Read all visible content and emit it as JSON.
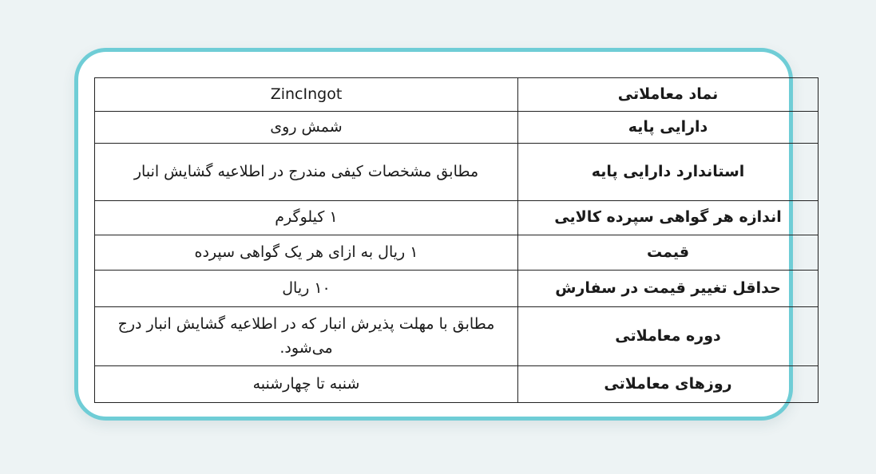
{
  "page": {
    "background_color": "#edf3f4",
    "direction": "rtl",
    "language": "fa"
  },
  "card": {
    "background_color": "#ffffff",
    "border_color": "#6fcdd6"
  },
  "table": {
    "border_color": "#222222",
    "text_color": "#1a1a1a",
    "label_column_side": "right",
    "rows": [
      {
        "label": "نماد معاملاتی",
        "value": "ZincIngot"
      },
      {
        "label": "دارایی پایه",
        "value": "شمش روی"
      },
      {
        "label": "استاندارد دارایی پایه",
        "value": "مطابق مشخصات کیفی مندرج در اطلاعیه گشایش انبار"
      },
      {
        "label": "اندازه هر گواهی سپرده کالایی",
        "value": "۱ کیلوگرم"
      },
      {
        "label": "قیمت",
        "value": "۱ ریال به ازای هر یک گواهی سپرده"
      },
      {
        "label": "حداقل تغییر قیمت در سفارش",
        "value": "۱۰ ریال"
      },
      {
        "label": "دوره معاملاتی",
        "value": "مطابق با مهلت پذیرش انبار که در اطلاعیه گشایش انبار درج می‌شود."
      },
      {
        "label": "روزهای معاملاتی",
        "value": "شنبه تا چهارشنبه"
      }
    ]
  }
}
